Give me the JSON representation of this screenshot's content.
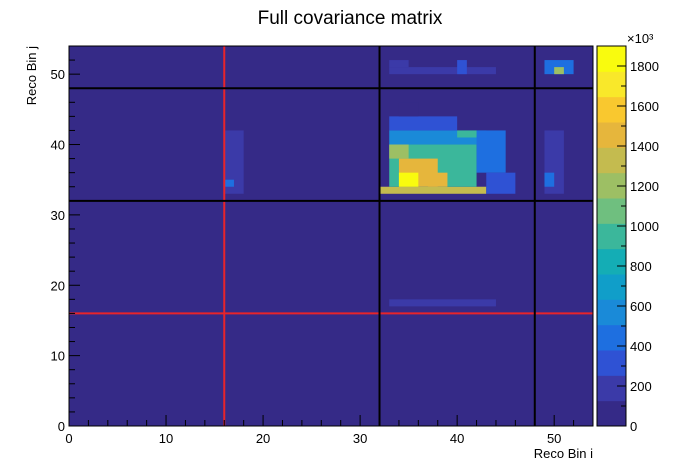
{
  "chart_data": {
    "type": "heatmap",
    "title": "Full covariance matrix",
    "xlabel": "Reco Bin i",
    "ylabel": "Reco Bin j",
    "xlim": [
      0,
      54
    ],
    "ylim": [
      0,
      54
    ],
    "x_ticks": [
      0,
      10,
      20,
      30,
      40,
      50
    ],
    "y_ticks": [
      0,
      10,
      20,
      30,
      40,
      50
    ],
    "colorbar": {
      "range": [
        0,
        1900
      ],
      "multiplier_label": "×10³",
      "ticks": [
        0,
        200,
        400,
        600,
        800,
        1000,
        1200,
        1400,
        1600,
        1800
      ],
      "palette": [
        "#352a87",
        "#3b3aa8",
        "#2f52d4",
        "#1e6fe0",
        "#1a8ad8",
        "#109ec9",
        "#14adb5",
        "#3bb79b",
        "#6fbf7f",
        "#9dbf64",
        "#c4bb4f",
        "#e6b63c",
        "#f9c82f",
        "#f9e82a",
        "#f9fb0e"
      ]
    },
    "background_value": 0,
    "blocks": [
      {
        "x0": 32,
        "x1": 43,
        "y0": 33,
        "y1": 34,
        "value": 1300
      },
      {
        "x0": 33,
        "x1": 42,
        "y0": 34,
        "y1": 40,
        "value": 1000
      },
      {
        "x0": 33,
        "x1": 43,
        "y0": 40,
        "y1": 42,
        "value": 560
      },
      {
        "x0": 33,
        "x1": 40,
        "y0": 42,
        "y1": 44,
        "value": 300
      },
      {
        "x0": 34,
        "x1": 36,
        "y0": 44,
        "y1": 46,
        "value": 120
      },
      {
        "x0": 42,
        "x1": 45,
        "y0": 36,
        "y1": 42,
        "value": 380
      },
      {
        "x0": 43,
        "x1": 46,
        "y0": 33,
        "y1": 36,
        "value": 300
      },
      {
        "x0": 34,
        "x1": 38,
        "y0": 34,
        "y1": 38,
        "value": 1500
      },
      {
        "x0": 34,
        "x1": 36,
        "y0": 34,
        "y1": 36,
        "value": 1900
      },
      {
        "x0": 37,
        "x1": 39,
        "y0": 34,
        "y1": 36,
        "value": 1420
      },
      {
        "x0": 40,
        "x1": 42,
        "y0": 41,
        "y1": 42,
        "value": 1000
      },
      {
        "x0": 33,
        "x1": 35,
        "y0": 38,
        "y1": 40,
        "value": 1150
      },
      {
        "x0": 16,
        "x1": 18,
        "y0": 33,
        "y1": 42,
        "value": 200
      },
      {
        "x0": 16,
        "x1": 17,
        "y0": 34,
        "y1": 35,
        "value": 420
      },
      {
        "x0": 49,
        "x1": 51,
        "y0": 33,
        "y1": 42,
        "value": 220
      },
      {
        "x0": 49,
        "x1": 50,
        "y0": 34,
        "y1": 36,
        "value": 400
      },
      {
        "x0": 33,
        "x1": 44,
        "y0": 17,
        "y1": 18,
        "value": 140
      },
      {
        "x0": 33,
        "x1": 44,
        "y0": 50,
        "y1": 51,
        "value": 140
      },
      {
        "x0": 40,
        "x1": 41,
        "y0": 50,
        "y1": 52,
        "value": 280
      },
      {
        "x0": 33,
        "x1": 35,
        "y0": 51,
        "y1": 52,
        "value": 200
      },
      {
        "x0": 49,
        "x1": 52,
        "y0": 50,
        "y1": 52,
        "value": 380
      },
      {
        "x0": 50,
        "x1": 51,
        "y0": 50,
        "y1": 51,
        "value": 1200
      }
    ],
    "black_lines": [
      {
        "orientation": "vertical",
        "at": 32
      },
      {
        "orientation": "vertical",
        "at": 48
      },
      {
        "orientation": "horizontal",
        "at": 32
      },
      {
        "orientation": "horizontal",
        "at": 48
      }
    ],
    "red_lines": [
      {
        "orientation": "vertical",
        "at": 16
      },
      {
        "orientation": "horizontal",
        "at": 16
      }
    ]
  }
}
